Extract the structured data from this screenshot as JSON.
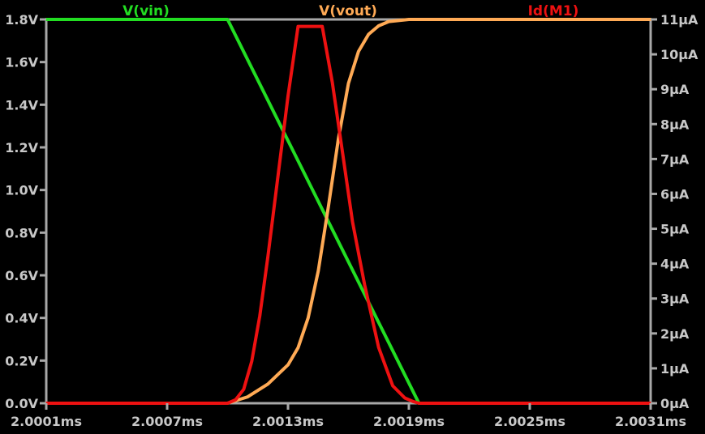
{
  "chart_data": {
    "type": "line",
    "xlabel": "",
    "x_ticks": [
      "2.0001ms",
      "2.0007ms",
      "2.0013ms",
      "2.0019ms",
      "2.0025ms",
      "2.0031ms"
    ],
    "x_range_ms": [
      2.0001,
      2.0031
    ],
    "left_axis": {
      "unit": "V",
      "range": [
        0,
        1.8
      ],
      "ticks": [
        "0.0V",
        "0.2V",
        "0.4V",
        "0.6V",
        "0.8V",
        "1.0V",
        "1.2V",
        "1.4V",
        "1.6V",
        "1.8V"
      ]
    },
    "right_axis": {
      "unit": "µA",
      "range": [
        0,
        11
      ],
      "ticks": [
        "0µA",
        "1µA",
        "2µA",
        "3µA",
        "4µA",
        "5µA",
        "6µA",
        "7µA",
        "8µA",
        "9µA",
        "10µA",
        "11µA"
      ]
    },
    "grid": false,
    "legend_placement": "top",
    "series": [
      {
        "name": "V(vin)",
        "axis": "left",
        "color": "#22dd22",
        "x": [
          2.0001,
          2.001,
          2.00195,
          2.0031
        ],
        "y": [
          1.8,
          1.8,
          0.0,
          0.0
        ]
      },
      {
        "name": "V(vout)",
        "axis": "left",
        "color": "#ffaa55",
        "x": [
          2.0001,
          2.001,
          2.0011,
          2.0012,
          2.0013,
          2.00135,
          2.0014,
          2.00145,
          2.0015,
          2.00155,
          2.0016,
          2.00165,
          2.0017,
          2.00175,
          2.0018,
          2.0019,
          2.002,
          2.0031
        ],
        "y": [
          0.0,
          0.0,
          0.03,
          0.09,
          0.18,
          0.26,
          0.4,
          0.62,
          0.92,
          1.24,
          1.5,
          1.65,
          1.73,
          1.77,
          1.79,
          1.8,
          1.8,
          1.8
        ]
      },
      {
        "name": "Id(M1)",
        "axis": "right",
        "color": "#ee1111",
        "x": [
          2.0001,
          2.001,
          2.00104,
          2.00108,
          2.00112,
          2.00116,
          2.0012,
          2.00125,
          2.0013,
          2.00135,
          2.00142,
          2.00147,
          2.00152,
          2.00157,
          2.00162,
          2.00168,
          2.00175,
          2.00182,
          2.00188,
          2.00192,
          2.00195,
          2.0031
        ],
        "y": [
          0.0,
          0.0,
          0.1,
          0.4,
          1.2,
          2.5,
          4.2,
          6.5,
          8.8,
          10.8,
          10.8,
          10.8,
          9.2,
          7.2,
          5.2,
          3.4,
          1.6,
          0.5,
          0.15,
          0.05,
          0.0,
          0.0
        ]
      }
    ]
  }
}
